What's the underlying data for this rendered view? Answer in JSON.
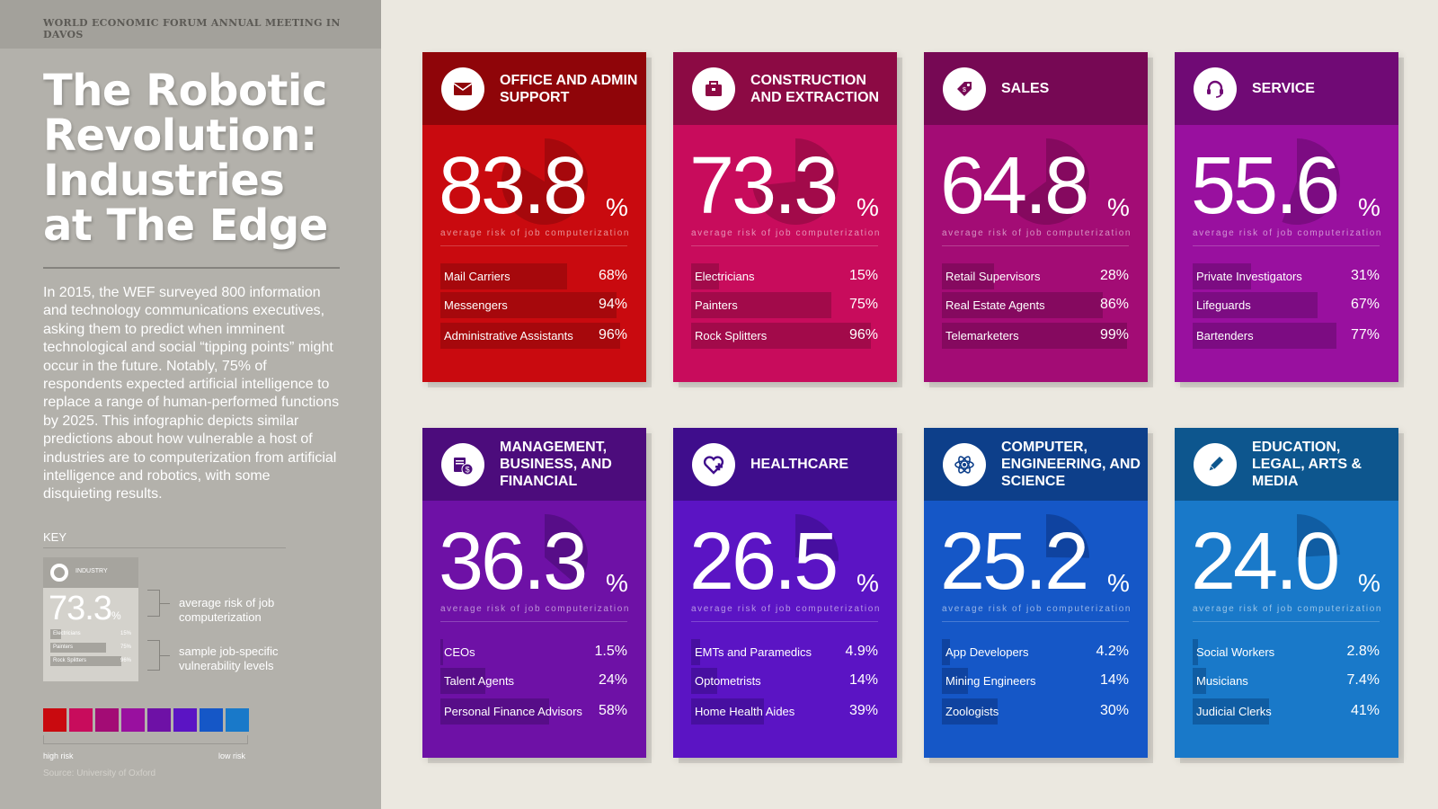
{
  "header": "WORLD ECONOMIC FORUM ANNUAL MEETING IN DAVOS",
  "title_lines": [
    "The Robotic",
    "Revolution:",
    "Industries",
    "at The Edge"
  ],
  "intro": "In 2015, the WEF surveyed 800 information and technology communications executives, asking them to predict when imminent technological and social “tipping points” might occur in the future. Notably, 75% of respondents expected artificial intelligence to replace a range of human-performed functions by 2025. This infographic depicts similar predictions about how vulnerable a host of industries are to computerization from artificial intelligence and robotics, with some disquieting results.",
  "key": {
    "label": "KEY",
    "industry": "INDUSTRY",
    "big": "73.3",
    "pct": "%",
    "rows": [
      {
        "name": "Electricians",
        "value": "15%",
        "fill": 0.15
      },
      {
        "name": "Painters",
        "value": "75%",
        "fill": 0.75
      },
      {
        "name": "Rock Splitters",
        "value": "96%",
        "fill": 0.96
      }
    ],
    "note_average": "average risk of job computerization",
    "note_sample": "sample job-specific vulnerability levels",
    "swatches": [
      "#c90a0f",
      "#c80c5c",
      "#a30c75",
      "#99109f",
      "#6e11a6",
      "#5b14c4",
      "#1557c7",
      "#1979c9"
    ],
    "high": "high risk",
    "low": "low risk",
    "source": "Source: University of Oxford"
  },
  "caption": "average risk of job computerization",
  "chart_data": {
    "type": "table",
    "cards": [
      {
        "name": "OFFICE AND ADMIN SUPPORT",
        "icon": "envelope-icon",
        "value": 83.8,
        "display": "83.8",
        "head": "#8f0509",
        "body": "#c90a0f",
        "bar": "#a6080c",
        "jobs": [
          {
            "name": "Mail Carriers",
            "value": 68,
            "label": "68%"
          },
          {
            "name": "Messengers",
            "value": 94,
            "label": "94%"
          },
          {
            "name": "Administrative Assistants",
            "value": 96,
            "label": "96%"
          }
        ]
      },
      {
        "name": "CONSTRUCTION AND EXTRACTION",
        "icon": "toolbox-icon",
        "value": 73.3,
        "display": "73.3",
        "head": "#8c0a44",
        "body": "#c80c5c",
        "bar": "#a20a4a",
        "jobs": [
          {
            "name": "Electricians",
            "value": 15,
            "label": "15%"
          },
          {
            "name": "Painters",
            "value": 75,
            "label": "75%"
          },
          {
            "name": "Rock Splitters",
            "value": 96,
            "label": "96%"
          }
        ]
      },
      {
        "name": "SALES",
        "icon": "price-tag-icon",
        "value": 64.8,
        "display": "64.8",
        "head": "#760854",
        "body": "#a30c75",
        "bar": "#85095f",
        "jobs": [
          {
            "name": "Retail Supervisors",
            "value": 28,
            "label": "28%"
          },
          {
            "name": "Real Estate Agents",
            "value": 86,
            "label": "86%"
          },
          {
            "name": "Telemarketers",
            "value": 99,
            "label": "99%"
          }
        ]
      },
      {
        "name": "SERVICE",
        "icon": "headset-icon",
        "value": 55.6,
        "display": "55.6",
        "head": "#700a75",
        "body": "#99109f",
        "bar": "#7c0c82",
        "jobs": [
          {
            "name": "Private Investigators",
            "value": 31,
            "label": "31%"
          },
          {
            "name": "Lifeguards",
            "value": 67,
            "label": "67%"
          },
          {
            "name": "Bartenders",
            "value": 77,
            "label": "77%"
          }
        ]
      },
      {
        "name": "MANAGEMENT, BUSINESS, AND FINANCIAL",
        "icon": "briefcase-money-icon",
        "value": 36.3,
        "display": "36.3",
        "head": "#4c0c7c",
        "body": "#6e11a6",
        "bar": "#570d88",
        "jobs": [
          {
            "name": "CEOs",
            "value": 1.5,
            "label": "1.5%"
          },
          {
            "name": "Talent Agents",
            "value": 24,
            "label": "24%"
          },
          {
            "name": "Personal Finance Advisors",
            "value": 58,
            "label": "58%"
          }
        ]
      },
      {
        "name": "HEALTHCARE",
        "icon": "heart-plus-icon",
        "value": 26.5,
        "display": "26.5",
        "head": "#3f0d8c",
        "body": "#5b14c4",
        "bar": "#470fa0",
        "jobs": [
          {
            "name": "EMTs and Paramedics",
            "value": 4.9,
            "label": "4.9%"
          },
          {
            "name": "Optometrists",
            "value": 14,
            "label": "14%"
          },
          {
            "name": "Home Health Aides",
            "value": 39,
            "label": "39%"
          }
        ]
      },
      {
        "name": "COMPUTER, ENGINEERING, AND SCIENCE",
        "icon": "atom-icon",
        "value": 25.2,
        "display": "25.2",
        "head": "#0d3f8a",
        "body": "#1557c7",
        "bar": "#0f43a0",
        "jobs": [
          {
            "name": "App Developers",
            "value": 4.2,
            "label": "4.2%"
          },
          {
            "name": "Mining Engineers",
            "value": 14,
            "label": "14%"
          },
          {
            "name": "Zoologists",
            "value": 30,
            "label": "30%"
          }
        ]
      },
      {
        "name": "EDUCATION, LEGAL, ARTS & MEDIA",
        "icon": "pencil-icon",
        "value": 24.0,
        "display": "24.0",
        "head": "#0d568e",
        "body": "#1979c9",
        "bar": "#105da3",
        "jobs": [
          {
            "name": "Social Workers",
            "value": 2.8,
            "label": "2.8%"
          },
          {
            "name": "Musicians",
            "value": 7.4,
            "label": "7.4%"
          },
          {
            "name": "Judicial Clerks",
            "value": 41,
            "label": "41%"
          }
        ]
      }
    ]
  }
}
